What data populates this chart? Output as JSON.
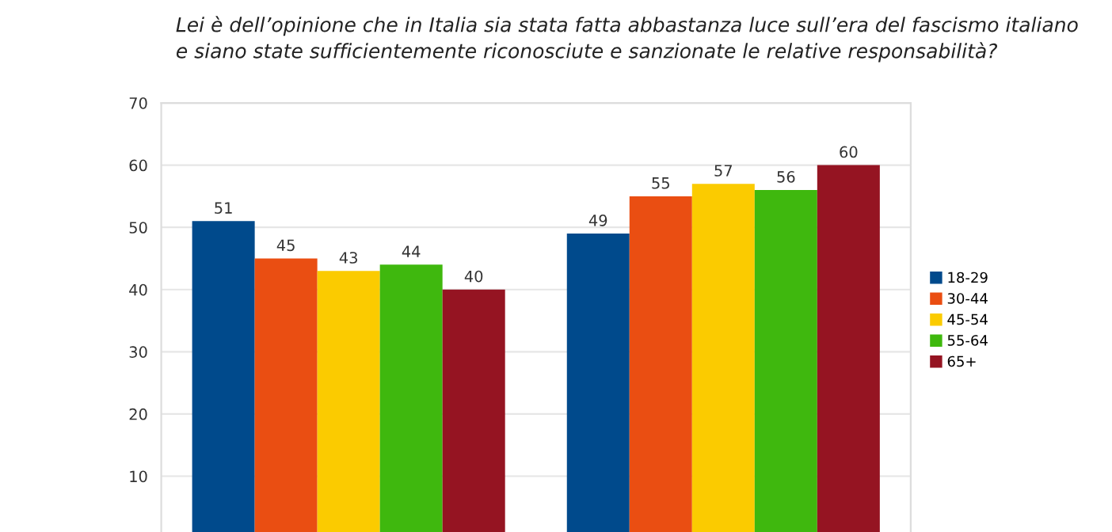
{
  "chart_data": {
    "type": "bar",
    "title": "Lei è dell’opinione che in Italia sia stata fatta abbastanza luce sull’era del fascismo italiano\ne siano state sufficientemente riconosciute e sanzionate le relative responsabilità?",
    "categories": [
      null,
      null
    ],
    "series": [
      {
        "name": "18-29",
        "color": "#004a8c",
        "values": [
          51,
          49
        ]
      },
      {
        "name": "30-44",
        "color": "#ea4e12",
        "values": [
          45,
          55
        ]
      },
      {
        "name": "45-54",
        "color": "#fbcb00",
        "values": [
          43,
          57
        ]
      },
      {
        "name": "55-64",
        "color": "#3fb80e",
        "values": [
          44,
          56
        ]
      },
      {
        "name": "65+",
        "color": "#951422",
        "values": [
          40,
          60
        ]
      }
    ],
    "ylim": [
      0,
      70
    ],
    "yticks": [
      10,
      20,
      30,
      40,
      50,
      60,
      70
    ],
    "grid": "y",
    "legend": "right",
    "data_labels": true
  }
}
